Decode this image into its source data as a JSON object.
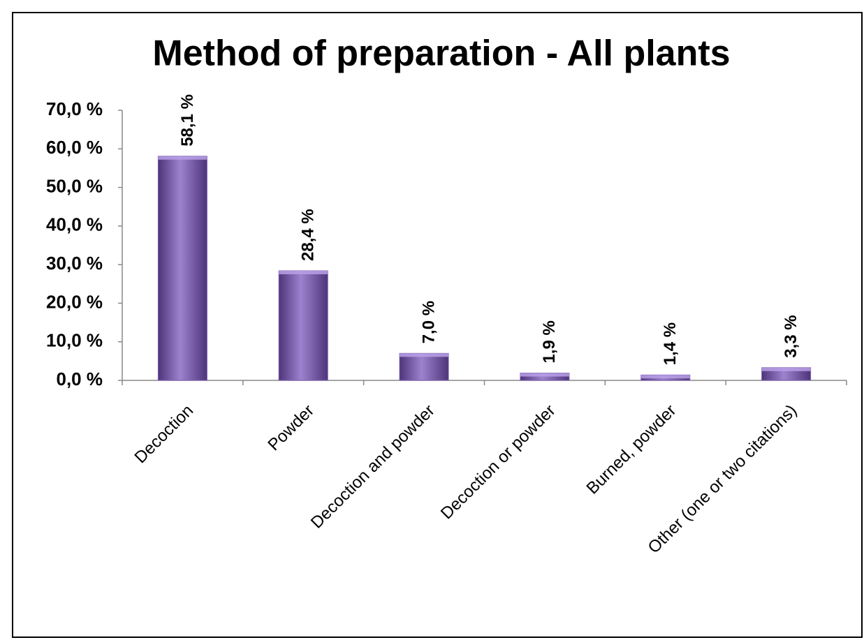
{
  "chart_data": {
    "type": "bar",
    "title": "Method of preparation - All plants",
    "categories": [
      "Decoction",
      "Powder",
      "Decoction and powder",
      "Decoction or powder",
      "Burned, powder",
      "Other (one or two citations)"
    ],
    "values": [
      58.1,
      28.4,
      7.0,
      1.9,
      1.4,
      3.3
    ],
    "value_labels": [
      "58,1 %",
      "28,4 %",
      "7,0 %",
      "1,9 %",
      "1,4 %",
      "3,3 %"
    ],
    "color": "#7b5fae",
    "ylim": [
      0,
      70
    ],
    "yticks": [
      {
        "value": 0,
        "label": "0,0 %"
      },
      {
        "value": 10,
        "label": "10,0 %"
      },
      {
        "value": 20,
        "label": "20,0 %"
      },
      {
        "value": 30,
        "label": "30,0 %"
      },
      {
        "value": 40,
        "label": "40,0 %"
      },
      {
        "value": 50,
        "label": "50,0 %"
      },
      {
        "value": 60,
        "label": "60,0 %"
      },
      {
        "value": 70,
        "label": "70,0 %"
      }
    ],
    "grid": false
  }
}
